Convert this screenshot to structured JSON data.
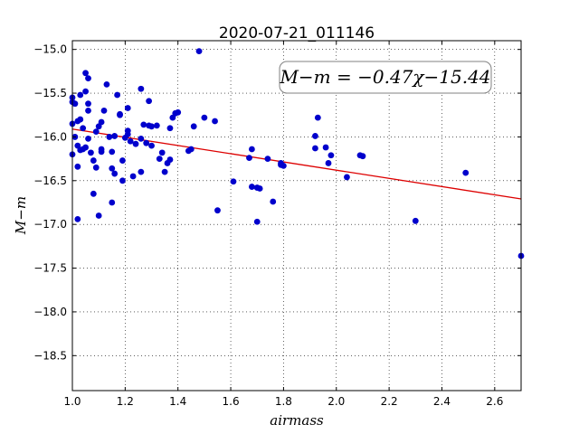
{
  "chart_data": {
    "type": "scatter",
    "title": "2020-07-21_011146",
    "xlabel": "airmass",
    "ylabel": "M−m",
    "xlim": [
      1.0,
      2.7
    ],
    "ylim": [
      -14.9,
      -18.9
    ],
    "y_inverted": true,
    "grid": true,
    "xticks": [
      1.0,
      1.2,
      1.4,
      1.6,
      1.8,
      2.0,
      2.2,
      2.4,
      2.6
    ],
    "xtick_labels": [
      "1.0",
      "1.2",
      "1.4",
      "1.6",
      "1.8",
      "2.0",
      "2.2",
      "2.4",
      "2.6"
    ],
    "yticks": [
      -15.0,
      -15.5,
      -16.0,
      -16.5,
      -17.0,
      -17.5,
      -18.0,
      -18.5
    ],
    "ytick_labels": [
      "−15.0",
      "−15.5",
      "−16.0",
      "−16.5",
      "−17.0",
      "−17.5",
      "−18.0",
      "−18.5"
    ],
    "annotation": "M−m = −0.47χ−15.44",
    "fit_line": {
      "slope": -0.47,
      "intercept": -15.44,
      "color": "#dd0000"
    },
    "marker_color": "#0000cc",
    "series": [
      {
        "points": [
          [
            1.0,
            -15.85
          ],
          [
            1.0,
            -16.2
          ],
          [
            1.0,
            -15.6
          ],
          [
            1.0,
            -15.55
          ],
          [
            1.01,
            -15.62
          ],
          [
            1.01,
            -16.0
          ],
          [
            1.02,
            -16.34
          ],
          [
            1.02,
            -16.94
          ],
          [
            1.02,
            -16.1
          ],
          [
            1.02,
            -15.82
          ],
          [
            1.03,
            -15.8
          ],
          [
            1.03,
            -15.52
          ],
          [
            1.03,
            -16.15
          ],
          [
            1.04,
            -15.9
          ],
          [
            1.04,
            -16.14
          ],
          [
            1.05,
            -15.48
          ],
          [
            1.05,
            -16.12
          ],
          [
            1.05,
            -15.27
          ],
          [
            1.06,
            -15.33
          ],
          [
            1.06,
            -15.62
          ],
          [
            1.06,
            -15.7
          ],
          [
            1.06,
            -16.02
          ],
          [
            1.07,
            -16.18
          ],
          [
            1.08,
            -16.65
          ],
          [
            1.08,
            -16.27
          ],
          [
            1.09,
            -16.35
          ],
          [
            1.09,
            -15.94
          ],
          [
            1.1,
            -16.9
          ],
          [
            1.1,
            -15.88
          ],
          [
            1.11,
            -15.83
          ],
          [
            1.11,
            -16.14
          ],
          [
            1.11,
            -16.17
          ],
          [
            1.12,
            -15.7
          ],
          [
            1.13,
            -15.4
          ],
          [
            1.14,
            -16.0
          ],
          [
            1.15,
            -16.36
          ],
          [
            1.15,
            -16.17
          ],
          [
            1.15,
            -16.75
          ],
          [
            1.16,
            -16.42
          ],
          [
            1.16,
            -15.99
          ],
          [
            1.17,
            -15.52
          ],
          [
            1.18,
            -15.75
          ],
          [
            1.18,
            -15.74
          ],
          [
            1.19,
            -16.27
          ],
          [
            1.19,
            -16.5
          ],
          [
            1.2,
            -16.01
          ],
          [
            1.21,
            -15.93
          ],
          [
            1.21,
            -15.97
          ],
          [
            1.21,
            -15.67
          ],
          [
            1.22,
            -16.05
          ],
          [
            1.23,
            -16.45
          ],
          [
            1.24,
            -16.08
          ],
          [
            1.26,
            -15.45
          ],
          [
            1.26,
            -16.4
          ],
          [
            1.26,
            -16.02
          ],
          [
            1.27,
            -15.86
          ],
          [
            1.28,
            -16.07
          ],
          [
            1.29,
            -15.87
          ],
          [
            1.29,
            -15.59
          ],
          [
            1.3,
            -16.1
          ],
          [
            1.3,
            -15.88
          ],
          [
            1.32,
            -15.87
          ],
          [
            1.33,
            -16.25
          ],
          [
            1.34,
            -16.18
          ],
          [
            1.35,
            -16.4
          ],
          [
            1.36,
            -16.3
          ],
          [
            1.37,
            -16.26
          ],
          [
            1.37,
            -15.9
          ],
          [
            1.38,
            -15.78
          ],
          [
            1.39,
            -15.73
          ],
          [
            1.4,
            -15.72
          ],
          [
            1.44,
            -16.16
          ],
          [
            1.45,
            -16.14
          ],
          [
            1.46,
            -15.88
          ],
          [
            1.48,
            -15.02
          ],
          [
            1.5,
            -15.78
          ],
          [
            1.54,
            -15.82
          ],
          [
            1.55,
            -16.84
          ],
          [
            1.61,
            -16.51
          ],
          [
            1.67,
            -16.24
          ],
          [
            1.68,
            -16.14
          ],
          [
            1.68,
            -16.57
          ],
          [
            1.7,
            -16.58
          ],
          [
            1.7,
            -16.97
          ],
          [
            1.71,
            -16.59
          ],
          [
            1.74,
            -16.25
          ],
          [
            1.76,
            -16.74
          ],
          [
            1.79,
            -16.3
          ],
          [
            1.79,
            -16.32
          ],
          [
            1.8,
            -16.33
          ],
          [
            1.92,
            -16.13
          ],
          [
            1.92,
            -15.99
          ],
          [
            1.93,
            -15.78
          ],
          [
            1.96,
            -16.12
          ],
          [
            1.97,
            -16.3
          ],
          [
            1.98,
            -16.21
          ],
          [
            2.04,
            -16.46
          ],
          [
            2.09,
            -16.21
          ],
          [
            2.1,
            -16.22
          ],
          [
            2.3,
            -16.96
          ],
          [
            2.49,
            -16.41
          ],
          [
            2.7,
            -17.36
          ]
        ]
      }
    ]
  }
}
